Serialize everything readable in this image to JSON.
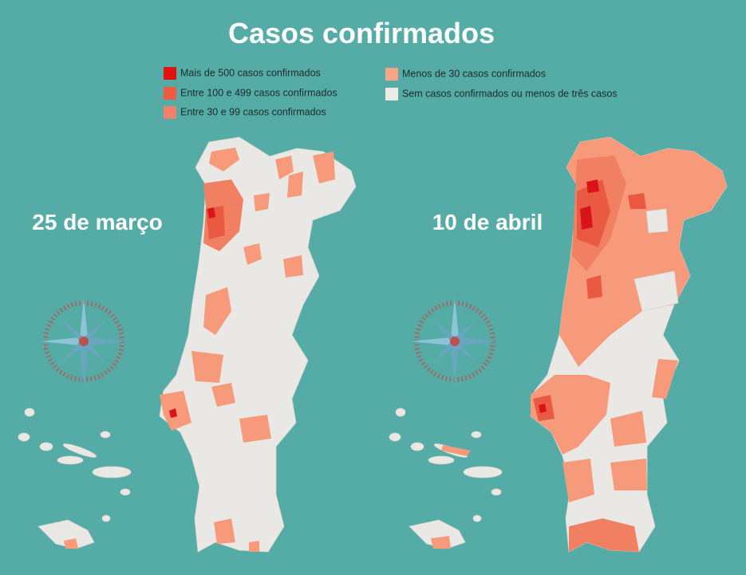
{
  "title": "Casos confirmados",
  "legend": [
    {
      "label": "Mais de 500 casos confirmados",
      "color": "#e2120f"
    },
    {
      "label": "Entre 100 e 499 casos confirmados",
      "color": "#ef5a40"
    },
    {
      "label": "Entre 30 e 99 casos confirmados",
      "color": "#f3806a"
    },
    {
      "label": "Menos de 30 casos confirmados",
      "color": "#f7a488"
    },
    {
      "label": "Sem casos confirmados ou menos de três casos",
      "color": "#ebeae6"
    }
  ],
  "maps": [
    {
      "label": "25 de março"
    },
    {
      "label": "10 de abril"
    }
  ]
}
